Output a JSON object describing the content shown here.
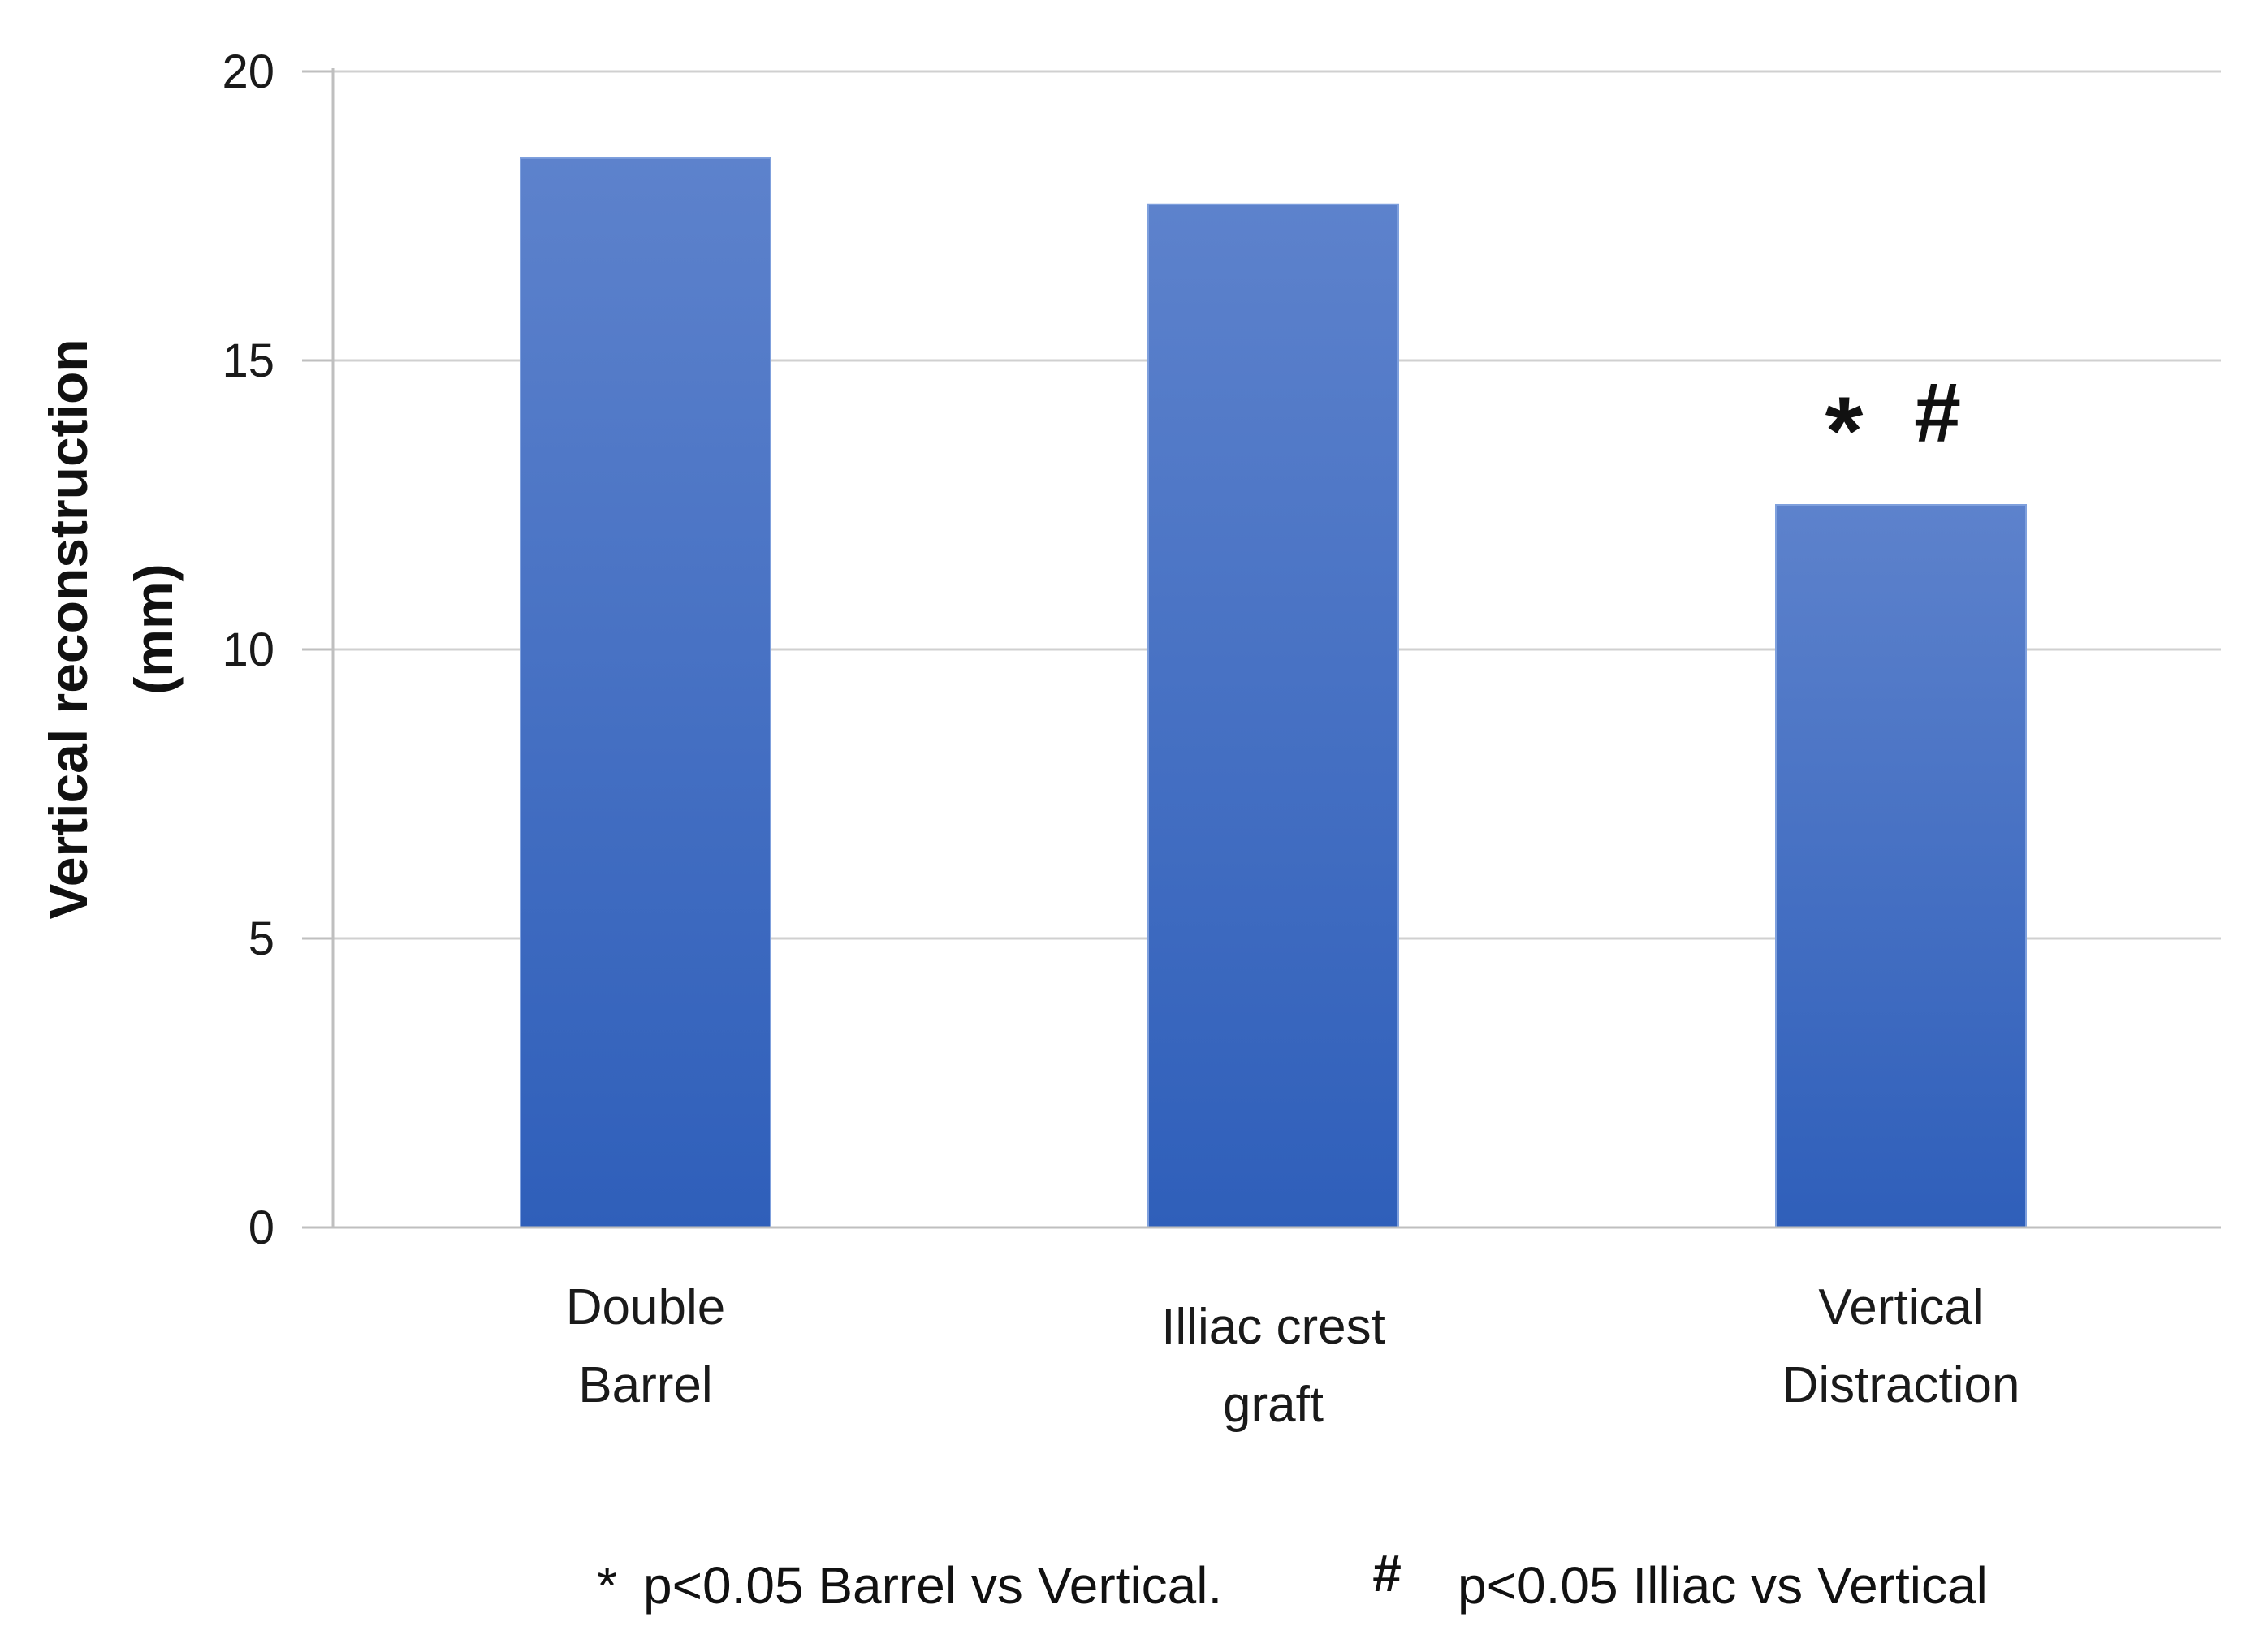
{
  "chart_data": {
    "type": "bar",
    "categories": [
      [
        "Double",
        "Barrel"
      ],
      [
        "Illiac crest",
        "graft"
      ],
      [
        "Vertical",
        "Distraction"
      ]
    ],
    "values": [
      18.5,
      17.7,
      12.5
    ],
    "ylabel": [
      "Vertical reconstruction",
      "(mm)"
    ],
    "ylim": [
      0,
      20
    ],
    "yticks": [
      0,
      5,
      10,
      15,
      20
    ],
    "grid": true,
    "bar_color_top": "#5d82cc",
    "bar_color_bottom": "#2f5fba",
    "annotations": [
      {
        "category_index": 2,
        "symbols": [
          "*",
          "#"
        ]
      }
    ],
    "footnotes": [
      {
        "symbol": "*",
        "text": "p<0.05 Barrel vs Vertical."
      },
      {
        "symbol": "#",
        "text": "p<0.05 Illiac vs Vertical"
      }
    ]
  }
}
